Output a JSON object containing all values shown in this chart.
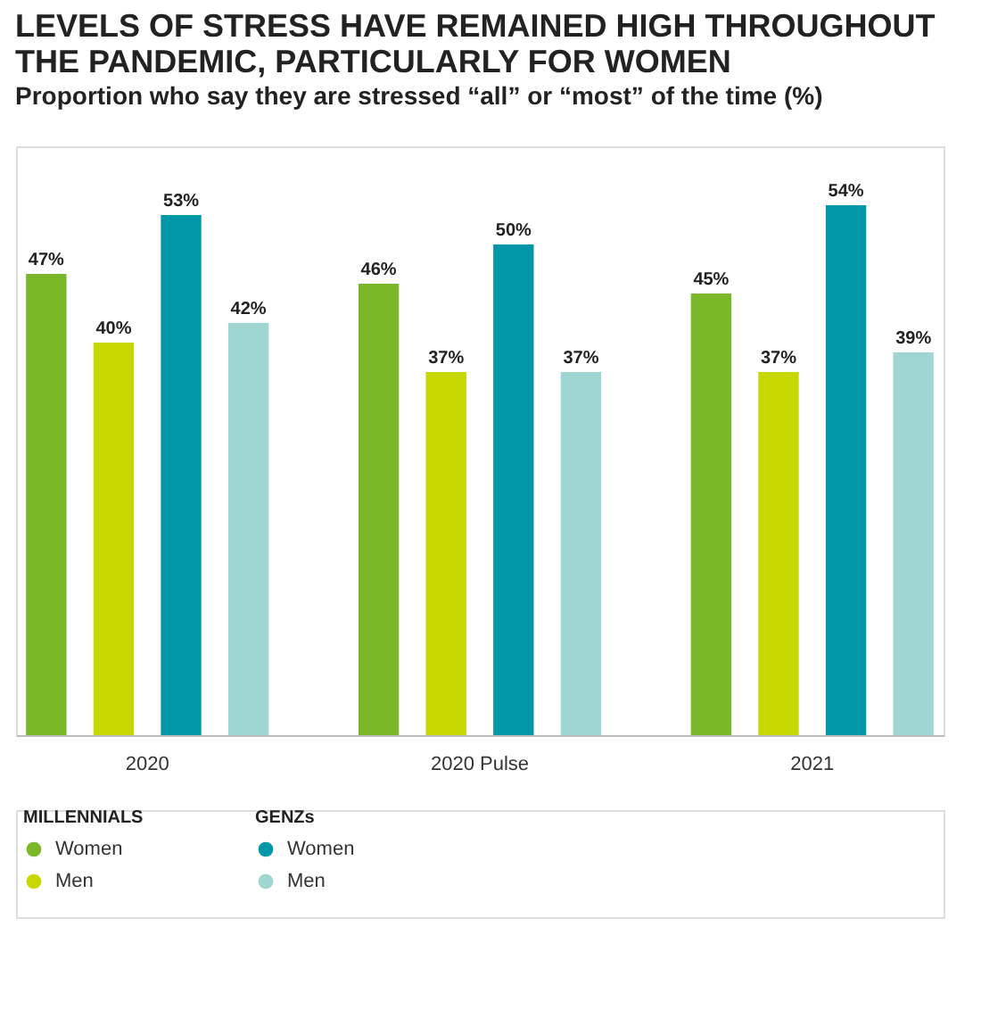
{
  "chart_data": {
    "type": "bar",
    "title": "LEVELS OF STRESS HAVE REMAINED HIGH THROUGHOUT THE PANDEMIC, PARTICULARLY FOR WOMEN",
    "subtitle": "Proportion who say they are stressed “all” or “most” of the time (%)",
    "categories": [
      "2020",
      "2020 Pulse",
      "2021"
    ],
    "series": [
      {
        "name": "Women",
        "color": "#7ab829",
        "values": [
          47,
          46,
          45
        ],
        "value_labels": [
          "47%",
          "46%",
          "45%"
        ]
      },
      {
        "name": "Men",
        "color": "#c6d800",
        "values": [
          40,
          37,
          37
        ],
        "value_labels": [
          "40%",
          "37%",
          "37%"
        ]
      },
      {
        "name": "Women",
        "color": "#0097a9",
        "values": [
          53,
          50,
          54
        ],
        "value_labels": [
          "53%",
          "50%",
          "54%"
        ]
      },
      {
        "name": "Men",
        "color": "#a0d6d2",
        "values": [
          42,
          37,
          39
        ],
        "value_labels": [
          "42%",
          "37%",
          "39%"
        ]
      }
    ],
    "ylim": [
      0,
      60
    ],
    "annotations": [
      "MILLENNIALS",
      "GENZs"
    ],
    "legend": "bottom left",
    "grid": false
  }
}
